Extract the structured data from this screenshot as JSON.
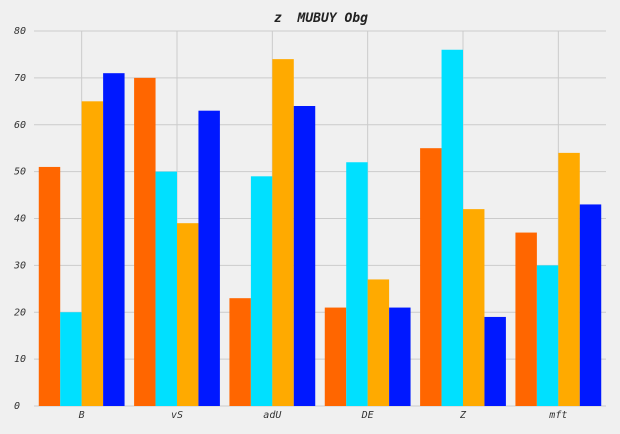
{
  "chart_data": {
    "type": "bar",
    "title": "z  MUBUY Obg",
    "xlabel": "",
    "ylabel": "",
    "categories": [
      "B",
      "vS",
      "adU",
      "DE",
      "Z",
      "mft"
    ],
    "ylim": [
      0,
      80
    ],
    "yticks": [
      0,
      10,
      20,
      30,
      40,
      50,
      60,
      70,
      80
    ],
    "grid": true,
    "series": [
      {
        "color": "#ff6600",
        "values": [
          51,
          70,
          23,
          21,
          55,
          37
        ]
      },
      {
        "color": "#00e0ff",
        "values": [
          20,
          50,
          49,
          52,
          76,
          30
        ]
      },
      {
        "color": "#ffaa00",
        "values": [
          65,
          39,
          74,
          27,
          42,
          54
        ]
      },
      {
        "color": "#0018ff",
        "values": [
          71,
          63,
          64,
          21,
          19,
          43
        ]
      }
    ]
  }
}
